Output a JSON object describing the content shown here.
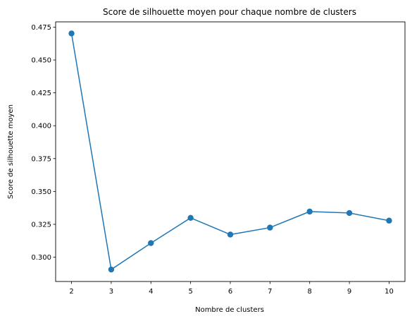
{
  "chart_data": {
    "type": "line",
    "title": "Score de silhouette moyen pour chaque nombre de clusters",
    "xlabel": "Nombre de clusters",
    "ylabel": "Score de silhouette moyen",
    "x": [
      2,
      3,
      4,
      5,
      6,
      7,
      8,
      9,
      10
    ],
    "series": [
      {
        "values": [
          0.4702,
          0.2906,
          0.3107,
          0.3299,
          0.3172,
          0.3225,
          0.3347,
          0.3336,
          0.3278
        ],
        "color": "#1f77b4",
        "marker": "circle"
      }
    ],
    "xlim": [
      1.6,
      10.4
    ],
    "ylim": [
      0.2815,
      0.479
    ],
    "xticks": [
      "2",
      "3",
      "4",
      "5",
      "6",
      "7",
      "8",
      "9",
      "10"
    ],
    "xtick_values": [
      2,
      3,
      4,
      5,
      6,
      7,
      8,
      9,
      10
    ],
    "yticks": [
      "0.300",
      "0.325",
      "0.350",
      "0.375",
      "0.400",
      "0.425",
      "0.450",
      "0.475"
    ],
    "ytick_values": [
      0.3,
      0.325,
      0.35,
      0.375,
      0.4,
      0.425,
      0.45,
      0.475
    ],
    "grid": false,
    "legend": false
  }
}
